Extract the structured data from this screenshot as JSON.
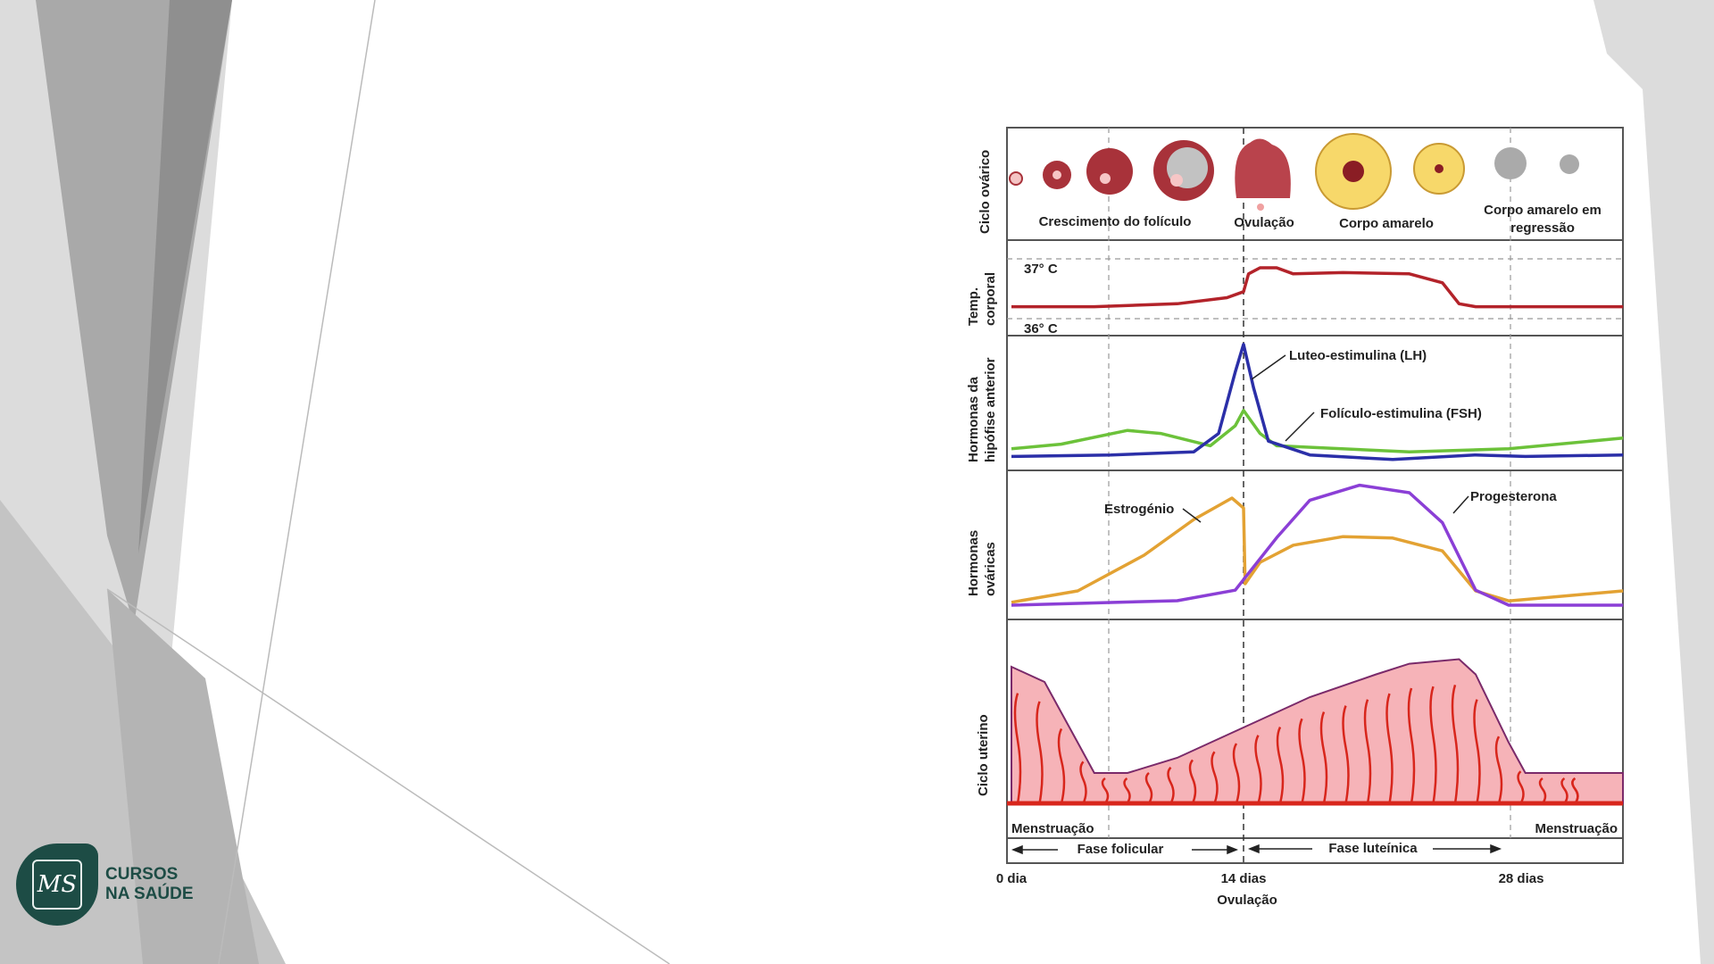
{
  "slide": {
    "logo": {
      "line1": "CURSOS",
      "line2": "NA SAÚDE",
      "mark": "MS"
    }
  },
  "figure": {
    "row_labels": {
      "ovarian_cycle": "Ciclo ovárico",
      "temp_1": "Temp.",
      "temp_2": "corporal",
      "pituitary_1": "Hormonas da",
      "pituitary_2": "hipófise anterior",
      "ovarian_h_1": "Hormonas",
      "ovarian_h_2": "ováricas",
      "uterine": "Ciclo uterino"
    },
    "ovary_labels": {
      "growth": "Crescimento do folículo",
      "ovulation": "Ovulação",
      "corpus": "Corpo amarelo",
      "regression_1": "Corpo amarelo em",
      "regression_2": "regressão"
    },
    "temp_labels": {
      "high": "37° C",
      "low": "36° C"
    },
    "curve_labels": {
      "lh": "Luteo-estimulina (LH)",
      "fsh": "Folículo-estimulina (FSH)",
      "estrogen": "Estrogénio",
      "progesterone": "Progesterona"
    },
    "phase_labels": {
      "menstruation_left": "Menstruação",
      "menstruation_right": "Menstruação",
      "follicular": "Fase folicular",
      "luteal": "Fase luteínica"
    },
    "axis_labels": {
      "day0": "0 dia",
      "day14": "14 dias",
      "day28": "28 dias",
      "ovulation": "Ovulação"
    }
  },
  "chart_data": {
    "type": "line",
    "xlabel": "dias",
    "x_ticks": [
      0,
      14,
      28
    ],
    "colors": {
      "temp": "#b3232a",
      "lh": "#2b2fa8",
      "fsh": "#6cc23a",
      "estrogen": "#e3a233",
      "progesterone": "#8b3fd6",
      "uterus_fill": "#f6b3b8",
      "uterus_line": "#d8261c"
    },
    "temperature": {
      "x": [
        0,
        5,
        10,
        13,
        14,
        14.3,
        15,
        16,
        17,
        20,
        24,
        26,
        27,
        28,
        30,
        36.9
      ],
      "y": [
        36.2,
        36.2,
        36.25,
        36.35,
        36.45,
        36.75,
        36.85,
        36.85,
        36.75,
        36.77,
        36.75,
        36.6,
        36.25,
        36.2,
        36.2,
        36.2
      ]
    },
    "lh": {
      "x": [
        0,
        6,
        11,
        12.5,
        13.5,
        14,
        14.6,
        15.5,
        18,
        23,
        28,
        31,
        36.9
      ],
      "y": [
        5,
        6,
        8,
        20,
        60,
        78,
        50,
        15,
        6,
        3,
        6,
        5,
        6
      ]
    },
    "fsh": {
      "x": [
        0,
        3,
        7,
        9,
        12,
        13.5,
        14,
        15,
        16,
        24,
        30,
        36.9
      ],
      "y": [
        10,
        13,
        22,
        20,
        12,
        25,
        35,
        20,
        12,
        8,
        10,
        17
      ]
    },
    "estrogen": {
      "x": [
        0,
        4,
        8,
        11,
        13.3,
        14,
        14.1,
        15,
        17,
        20,
        23,
        26,
        28,
        30,
        36.9
      ],
      "y": [
        2,
        10,
        35,
        60,
        75,
        68,
        15,
        30,
        42,
        48,
        47,
        38,
        10,
        3,
        10
      ]
    },
    "progesterone": {
      "x": [
        0,
        10,
        13.5,
        16,
        18,
        21,
        24,
        26,
        28,
        30,
        36.9
      ],
      "y": [
        0,
        3,
        10,
        45,
        70,
        80,
        75,
        55,
        10,
        0,
        0
      ]
    },
    "endometrium": {
      "x": [
        0,
        2,
        4,
        5,
        7,
        10,
        14,
        18,
        22,
        24,
        27,
        28,
        30,
        31,
        36.9
      ],
      "y": [
        90,
        80,
        40,
        20,
        20,
        30,
        50,
        70,
        85,
        92,
        95,
        85,
        40,
        20,
        20
      ]
    }
  }
}
